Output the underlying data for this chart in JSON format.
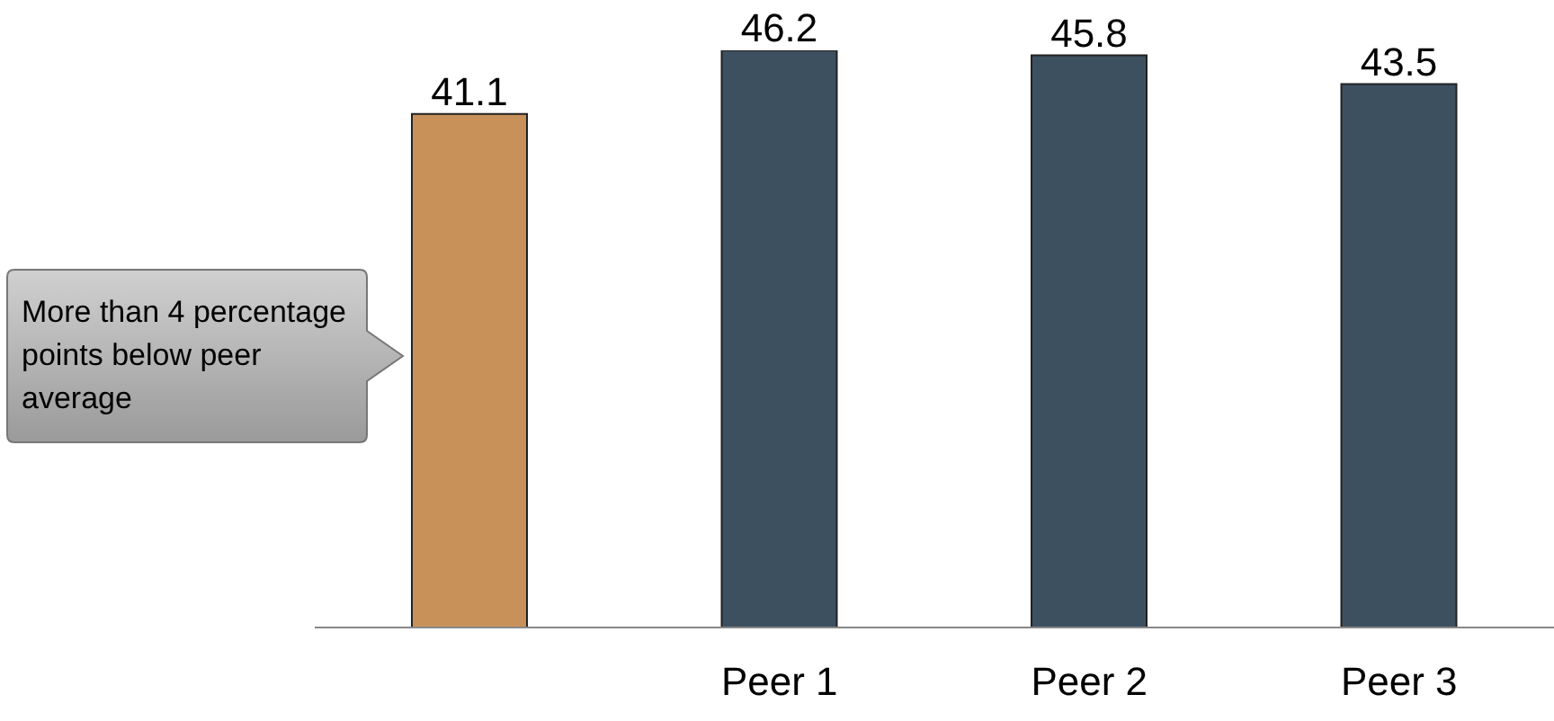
{
  "chart_data": {
    "type": "bar",
    "categories": [
      null,
      "Peer 1",
      "Peer 2",
      "Peer 3"
    ],
    "values": [
      41.1,
      46.2,
      45.8,
      43.5
    ],
    "colors": [
      "#c8915a",
      "#3d5060",
      "#3d5060",
      "#3d5060"
    ],
    "data_labels": true,
    "tick_labels": "x",
    "annotations": [
      "More than 4 percentage points below peer average"
    ]
  }
}
